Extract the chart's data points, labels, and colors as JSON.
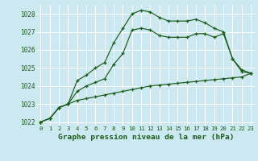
{
  "title": "Graphe pression niveau de la mer (hPa)",
  "bg_color": "#cce8f0",
  "grid_color": "#ffffff",
  "line_color": "#1a5c1a",
  "hours": [
    0,
    1,
    2,
    3,
    4,
    5,
    6,
    7,
    8,
    9,
    10,
    11,
    12,
    13,
    14,
    15,
    16,
    17,
    18,
    19,
    20,
    21,
    22,
    23
  ],
  "line1": [
    1022.0,
    1022.2,
    1022.8,
    1023.0,
    1024.3,
    1024.6,
    1025.0,
    1025.3,
    1026.4,
    1027.2,
    1028.0,
    1028.2,
    1028.1,
    1027.8,
    1027.6,
    1027.6,
    1027.6,
    1027.7,
    1027.5,
    1027.2,
    1027.0,
    1025.5,
    1024.9,
    1024.7
  ],
  "line2": [
    1022.0,
    1022.2,
    1022.8,
    1023.0,
    1023.7,
    1024.0,
    1024.2,
    1024.4,
    1025.2,
    1025.8,
    1027.1,
    1027.2,
    1027.1,
    1026.8,
    1026.7,
    1026.7,
    1026.7,
    1026.9,
    1026.9,
    1026.7,
    1026.9,
    1025.5,
    1024.8,
    1024.7
  ],
  "line3": [
    1022.0,
    1022.2,
    1022.8,
    1023.0,
    1023.2,
    1023.3,
    1023.4,
    1023.5,
    1023.6,
    1023.7,
    1023.8,
    1023.9,
    1024.0,
    1024.05,
    1024.1,
    1024.15,
    1024.2,
    1024.25,
    1024.3,
    1024.35,
    1024.4,
    1024.45,
    1024.5,
    1024.7
  ],
  "ylim": [
    1021.8,
    1028.5
  ],
  "yticks": [
    1022,
    1023,
    1024,
    1025,
    1026,
    1027,
    1028
  ],
  "ylabel_fontsize": 5.5,
  "xlabel_fontsize": 5.2,
  "title_fontsize": 6.8,
  "lw": 0.85
}
